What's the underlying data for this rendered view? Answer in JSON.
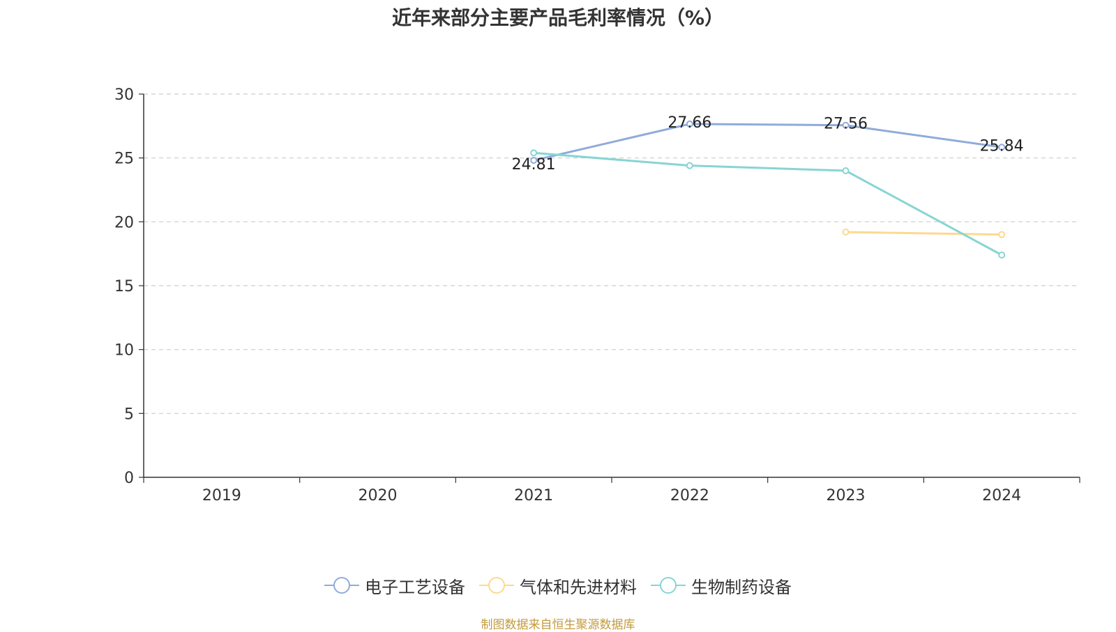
{
  "chart_data": {
    "type": "line",
    "title": "近年来部分主要产品毛利率情况（%）",
    "categories": [
      "2019",
      "2020",
      "2021",
      "2022",
      "2023",
      "2024"
    ],
    "ylim": [
      0,
      30
    ],
    "yticks": [
      "0",
      "5",
      "10",
      "15",
      "20",
      "25",
      "30"
    ],
    "grid": true,
    "legend_position": "bottom",
    "series": [
      {
        "name": "电子工艺设备",
        "color": "#8fabd9",
        "values": [
          null,
          null,
          24.81,
          27.66,
          27.56,
          25.84
        ],
        "labels": [
          "",
          "",
          "24.81",
          "27.66",
          "27.56",
          "25.84"
        ]
      },
      {
        "name": "气体和先进材料",
        "color": "#fcd98f",
        "values": [
          null,
          null,
          null,
          null,
          19.2,
          19.0
        ],
        "labels": [
          "",
          "",
          "",
          "",
          "",
          ""
        ]
      },
      {
        "name": "生物制药设备",
        "color": "#88d4d4",
        "values": [
          null,
          null,
          25.4,
          24.4,
          24.0,
          17.4
        ],
        "labels": [
          "",
          "",
          "",
          "",
          "",
          ""
        ]
      }
    ],
    "source": "制图数据来自恒生聚源数据库"
  }
}
